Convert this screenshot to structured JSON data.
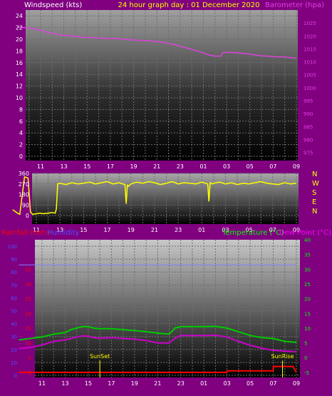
{
  "header": {
    "left_label": "Windspeed (kts)",
    "center_label": "24 hour graph day : 01 December 2020",
    "right_label": "Barometer (hpa)"
  },
  "colors": {
    "background": "#800080",
    "wind_gust": "#ffffff",
    "wind_avg": "#00c000",
    "barometer": "#e040e0",
    "direction": "#ffff00",
    "temperature": "#00cc00",
    "dew_point": "#cc00cc",
    "rainfall": "#ff0000",
    "humidity": "#8080ff",
    "rain_axis": "#ff0000",
    "humidity_axis": "#5050ff",
    "temp_axis": "#00ff00",
    "sun_marker": "#ffff00"
  },
  "time_labels": [
    "11",
    "13",
    "15",
    "17",
    "19",
    "21",
    "23",
    "01",
    "03",
    "05",
    "07",
    "09"
  ],
  "chart_data": [
    {
      "type": "line",
      "id": "wind_pressure",
      "y_left_ticks": [
        0,
        2,
        4,
        6,
        8,
        10,
        12,
        14,
        16,
        18,
        20,
        22,
        24
      ],
      "y_left_range": [
        0,
        25
      ],
      "y_right_ticks": [
        975,
        980,
        985,
        990,
        995,
        1000,
        1005,
        1010,
        1015,
        1020,
        1025
      ],
      "y_right_range": [
        973.5,
        1030
      ],
      "series": [
        {
          "name": "Barometer",
          "axis": "right",
          "x": [
            9,
            9.6,
            10,
            10.5,
            11,
            11.5,
            12,
            12.5,
            13,
            13.5,
            14,
            14.5,
            15,
            15.5,
            16,
            16.5,
            17,
            17.5,
            18,
            18.5,
            19,
            19.5,
            20,
            20.5,
            21,
            21.5,
            22,
            22.5,
            23,
            23.5,
            24,
            24.5,
            25,
            25.5,
            26,
            26.5,
            26.7,
            27,
            27.5,
            28,
            28.5,
            29,
            29.5,
            30,
            30.5,
            31,
            31.5,
            32,
            32.5,
            33
          ],
          "values": [
            1023.5,
            1023.2,
            1023,
            1022.7,
            1022.2,
            1021.5,
            1021,
            1020.5,
            1020.2,
            1020,
            1019.8,
            1019.5,
            1019.4,
            1019.3,
            1019.2,
            1019,
            1019,
            1019,
            1018.8,
            1018.6,
            1018.4,
            1018.3,
            1018.2,
            1018,
            1017.8,
            1017.5,
            1017.1,
            1016.6,
            1016,
            1015.4,
            1014.8,
            1014.2,
            1013.4,
            1012.6,
            1012.2,
            1012.2,
            1013.6,
            1013.6,
            1013.6,
            1013.4,
            1013.2,
            1013,
            1012.6,
            1012.3,
            1012.2,
            1012,
            1011.9,
            1011.8,
            1011.6,
            1011.3
          ]
        }
      ]
    },
    {
      "type": "line",
      "id": "wind_direction",
      "y_ticks": [
        0,
        90,
        180,
        270,
        360
      ],
      "y_range": [
        0,
        360
      ],
      "right_labels": [
        "N",
        "W",
        "S",
        "E",
        "N"
      ],
      "series": [
        {
          "name": "Direction",
          "x": [
            9,
            9.4,
            9.6,
            10,
            10.3,
            10.5,
            10.7,
            11,
            11.3,
            11.6,
            12,
            12.3,
            12.6,
            12.7,
            12.8,
            13,
            13.5,
            14,
            14.5,
            15,
            15.5,
            16,
            16.5,
            17,
            17.5,
            18,
            18.5,
            18.6,
            18.7,
            18.8,
            19,
            19.5,
            20,
            20.5,
            21,
            21.5,
            22,
            22.5,
            23,
            23.5,
            24,
            24.5,
            25,
            25.5,
            25.6,
            25.7,
            25.9,
            26,
            26.5,
            27,
            27.5,
            28,
            28.5,
            29,
            29.5,
            30,
            30.5,
            31,
            31.5,
            32,
            32.5,
            33
          ],
          "values": [
            50,
            20,
            10,
            330,
            320,
            30,
            10,
            15,
            20,
            15,
            20,
            25,
            20,
            60,
            270,
            275,
            265,
            280,
            270,
            275,
            285,
            270,
            280,
            290,
            270,
            280,
            265,
            100,
            260,
            250,
            270,
            285,
            275,
            290,
            280,
            265,
            275,
            290,
            270,
            280,
            275,
            270,
            285,
            270,
            120,
            280,
            270,
            275,
            285,
            270,
            280,
            265,
            275,
            270,
            280,
            290,
            275,
            270,
            265,
            280,
            270,
            275
          ]
        }
      ]
    },
    {
      "type": "line",
      "id": "temp_rain",
      "y_humidity_ticks": [
        0,
        10,
        20,
        30,
        40,
        50,
        60,
        70,
        80,
        90,
        100
      ],
      "y_humidity_range": [
        0,
        105
      ],
      "y_rain_ticks": [
        0,
        5,
        10,
        15,
        20,
        25,
        30,
        35
      ],
      "y_temp_ticks": [
        -5,
        0,
        5,
        10,
        15,
        20,
        25,
        30,
        35,
        40
      ],
      "y_temp_range": [
        -6,
        40
      ],
      "series": [
        {
          "name": "Temperature",
          "axis": "temp",
          "x": [
            9,
            10,
            11,
            12,
            13,
            13.5,
            14,
            14.5,
            15,
            15.5,
            16,
            17,
            18,
            19,
            20,
            21,
            22,
            22.5,
            23,
            24,
            25,
            26,
            27,
            28,
            29,
            30,
            31,
            32,
            33
          ],
          "values": [
            6,
            6.5,
            7,
            8,
            8.5,
            9.5,
            10,
            10.5,
            10.5,
            10,
            9.8,
            9.8,
            9.5,
            9.2,
            8.8,
            8.3,
            8,
            10,
            10.5,
            10.5,
            10.5,
            10.6,
            10,
            8.8,
            7.5,
            6.8,
            6.5,
            5.5,
            5.2
          ]
        },
        {
          "name": "Dew Point",
          "axis": "temp",
          "x": [
            9,
            10,
            11,
            12,
            13,
            13.5,
            14,
            14.5,
            15,
            15.5,
            16,
            17,
            18,
            19,
            20,
            21,
            22,
            22.5,
            23,
            24,
            25,
            26,
            27,
            28,
            29,
            30,
            31,
            32,
            33
          ],
          "values": [
            3,
            3.5,
            4.3,
            5.5,
            6,
            6.5,
            7,
            7.4,
            7.3,
            6.8,
            6.6,
            6.8,
            6.5,
            6.3,
            5.8,
            5,
            5,
            6.6,
            7.5,
            7.5,
            7.5,
            7.6,
            7,
            5.5,
            4.2,
            3.2,
            2.5,
            2.2,
            2
          ]
        },
        {
          "name": "Humidity",
          "axis": "humidity",
          "x": [
            9,
            33
          ],
          "values": [
            85.5,
            85.5
          ]
        },
        {
          "name": "Rainfall",
          "axis": "rain",
          "x": [
            9,
            27,
            27.01,
            31,
            31.01,
            32.7,
            33
          ],
          "values": [
            0,
            0,
            0.5,
            0.5,
            2,
            2,
            0
          ]
        }
      ]
    }
  ],
  "axis_labels": {
    "rainfall": "Rainfall (mm)",
    "humidity": "Humidity",
    "temperature": "Temperature (°C)",
    "dew_point": "Dew Point (°C)"
  },
  "events": {
    "sunset_label": "SunSet",
    "sunset_hour": 16.0,
    "sunrise_label": "SunRise",
    "sunrise_hour": 31.8
  }
}
